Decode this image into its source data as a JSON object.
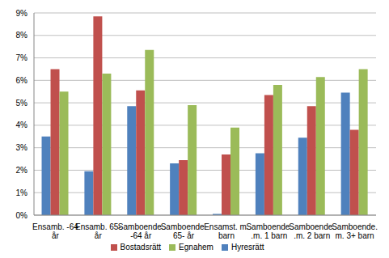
{
  "chart_data": {
    "type": "bar",
    "categories": [
      "Ensamb. -64 år",
      "Ensamb. 65- år",
      "Samboende. -64 år",
      "Samboende. 65- år",
      "Ensamst. m. barn",
      "Samboende. .m. 1 barn",
      "Samboende. .m. 2 barn",
      "Samboende. m. 3+ barn"
    ],
    "series": [
      {
        "name": "Hyresrätt",
        "color": "#4f81bd",
        "values": [
          3.5,
          1.95,
          4.85,
          2.3,
          0.05,
          2.75,
          3.45,
          5.45
        ]
      },
      {
        "name": "Bostadsrätt",
        "color": "#c0504d",
        "values": [
          6.5,
          8.85,
          5.55,
          2.45,
          2.7,
          5.35,
          4.85,
          3.8
        ]
      },
      {
        "name": "Egnahem",
        "color": "#9bbb59",
        "values": [
          5.5,
          6.3,
          7.35,
          4.9,
          3.9,
          5.8,
          6.15,
          6.5
        ]
      }
    ],
    "ylim": [
      0,
      9
    ],
    "yticks": [
      {
        "value": 0,
        "label": "0%"
      },
      {
        "value": 1,
        "label": "1%"
      },
      {
        "value": 2,
        "label": "2%"
      },
      {
        "value": 3,
        "label": "3%"
      },
      {
        "value": 4,
        "label": "4%"
      },
      {
        "value": 5,
        "label": "5%"
      },
      {
        "value": 6,
        "label": "6%"
      },
      {
        "value": 7,
        "label": "7%"
      },
      {
        "value": 8,
        "label": "8%"
      },
      {
        "value": 9,
        "label": "9%"
      }
    ],
    "grid": true,
    "legend": "bottom"
  }
}
